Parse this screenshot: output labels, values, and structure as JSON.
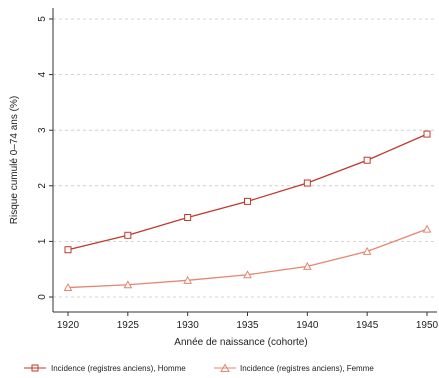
{
  "chart_data": {
    "type": "line",
    "title": "",
    "xlabel": "Année de naissance (cohorte)",
    "ylabel": "Risque cumulé 0–74 ans (%)",
    "x": [
      1920,
      1925,
      1930,
      1935,
      1940,
      1945,
      1950
    ],
    "xlim": [
      1920,
      1950
    ],
    "ylim": [
      0,
      5
    ],
    "x_ticks": [
      "1920",
      "1925",
      "1930",
      "1935",
      "1940",
      "1945",
      "1950"
    ],
    "y_ticks": [
      "0",
      "1",
      "2",
      "3",
      "4",
      "5"
    ],
    "grid": "horizontal dashed",
    "legend_position": "bottom",
    "series": [
      {
        "name": "Incidence (registres anciens), Homme",
        "marker": "square",
        "color": "#c0392b",
        "values": [
          0.85,
          1.11,
          1.43,
          1.72,
          2.05,
          2.46,
          2.93
        ]
      },
      {
        "name": "Incidence (registres anciens), Femme",
        "marker": "triangle",
        "color": "#e6866f",
        "values": [
          0.17,
          0.22,
          0.3,
          0.4,
          0.55,
          0.82,
          1.22
        ]
      }
    ]
  }
}
